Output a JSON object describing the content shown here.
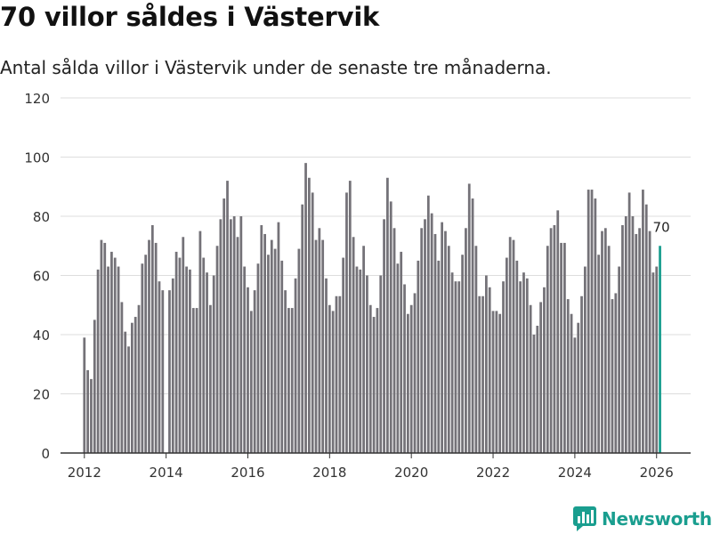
{
  "header": {
    "title": "70 villor såldes i Västervik",
    "subtitle": "Antal sålda villor i Västervik under de senaste tre månaderna."
  },
  "brand": {
    "name": "Newsworthy",
    "color": "#1a9e8f",
    "icon": "bar-chart-icon"
  },
  "colors": {
    "bar": "#747278",
    "highlight": "#1a9e8f",
    "grid": "#dddddd",
    "axis": "#333333"
  },
  "chart_data": {
    "type": "bar",
    "title": "70 villor såldes i Västervik",
    "xlabel": "",
    "ylabel": "",
    "ylim": [
      0,
      120
    ],
    "yticks": [
      0,
      20,
      40,
      60,
      80,
      100,
      120
    ],
    "xticks": [
      "2012",
      "2014",
      "2016",
      "2018",
      "2020",
      "2022",
      "2024",
      "2026"
    ],
    "xrange": [
      "2011-06",
      "2026-11"
    ],
    "start_month": "2012-01",
    "end_month": "2026-02",
    "highlight_last": true,
    "last_label": "70",
    "grid": true,
    "values": [
      39,
      28,
      25,
      45,
      62,
      72,
      71,
      63,
      68,
      66,
      63,
      51,
      41,
      36,
      44,
      46,
      50,
      64,
      67,
      72,
      77,
      71,
      58,
      55,
      0,
      55,
      59,
      68,
      66,
      73,
      63,
      62,
      49,
      49,
      75,
      66,
      61,
      50,
      60,
      70,
      79,
      86,
      92,
      79,
      80,
      73,
      80,
      63,
      56,
      48,
      55,
      64,
      77,
      74,
      67,
      72,
      69,
      78,
      65,
      55,
      49,
      49,
      59,
      69,
      84,
      98,
      93,
      88,
      72,
      76,
      72,
      59,
      50,
      48,
      53,
      53,
      66,
      88,
      92,
      73,
      63,
      62,
      70,
      60,
      50,
      46,
      49,
      60,
      79,
      93,
      85,
      76,
      64,
      68,
      57,
      47,
      50,
      54,
      65,
      76,
      79,
      87,
      81,
      74,
      65,
      78,
      75,
      70,
      61,
      58,
      58,
      67,
      76,
      91,
      86,
      70,
      53,
      53,
      60,
      56,
      48,
      48,
      47,
      58,
      66,
      73,
      72,
      65,
      58,
      61,
      59,
      50,
      40,
      43,
      51,
      56,
      70,
      76,
      77,
      82,
      71,
      71,
      52,
      47,
      39,
      44,
      53,
      63,
      89,
      89,
      86,
      67,
      75,
      76,
      70,
      52,
      54,
      63,
      77,
      80,
      88,
      80,
      74,
      76,
      89,
      84,
      75,
      61,
      63,
      70
    ]
  }
}
